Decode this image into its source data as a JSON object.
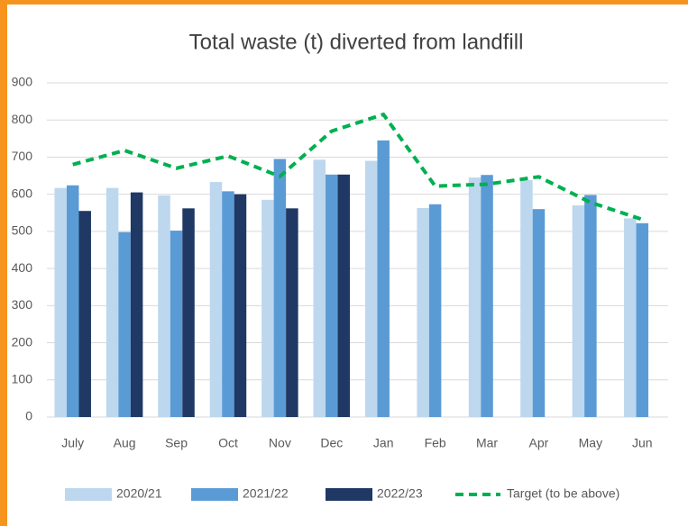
{
  "chart_data": {
    "type": "bar",
    "title": "Total waste (t) diverted from landfill",
    "categories": [
      "July",
      "Aug",
      "Sep",
      "Oct",
      "Nov",
      "Dec",
      "Jan",
      "Feb",
      "Mar",
      "Apr",
      "May",
      "Jun"
    ],
    "series": [
      {
        "name": "2020/21",
        "color": "#bdd7ee",
        "values": [
          617,
          617,
          597,
          633,
          585,
          693,
          690,
          563,
          645,
          638,
          570,
          535
        ]
      },
      {
        "name": "2021/22",
        "color": "#5b9bd5",
        "values": [
          624,
          498,
          502,
          608,
          695,
          653,
          745,
          573,
          652,
          560,
          598,
          522
        ]
      },
      {
        "name": "2022/23",
        "color": "#1f3864",
        "values": [
          555,
          605,
          562,
          600,
          562,
          653,
          null,
          null,
          null,
          null,
          null,
          null
        ]
      },
      {
        "name": "Target (to be above)",
        "type": "line",
        "color": "#00b050",
        "values": [
          680,
          718,
          670,
          703,
          648,
          770,
          815,
          622,
          627,
          647,
          578,
          532
        ]
      }
    ],
    "ylim": [
      0,
      900
    ],
    "yticks": [
      0,
      100,
      200,
      300,
      400,
      500,
      600,
      700,
      800,
      900
    ],
    "grid": true
  }
}
